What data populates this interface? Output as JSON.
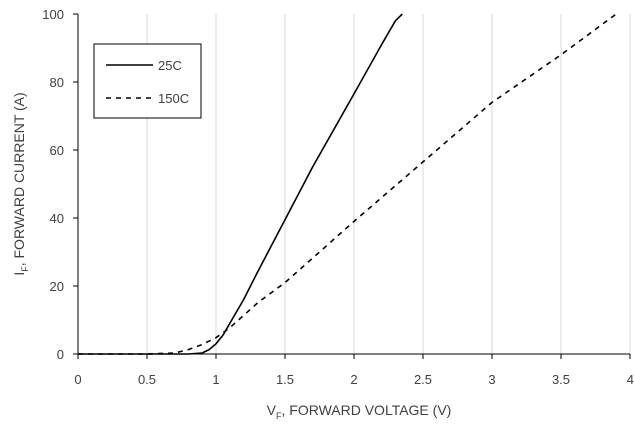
{
  "chart_data": {
    "type": "line",
    "xlabel": {
      "main": "V",
      "sub": "F",
      "rest": ", FORWARD VOLTAGE (V)"
    },
    "ylabel": {
      "main": "I",
      "sub": "F",
      "rest": ", FORWARD CURRENT (A)"
    },
    "xlim": [
      0,
      4
    ],
    "ylim": [
      0,
      100
    ],
    "xticks": [
      0,
      0.5,
      1,
      1.5,
      2,
      2.5,
      3,
      3.5,
      4
    ],
    "xtick_labels": [
      "0",
      "0.5",
      "1",
      "1.5",
      "2",
      "2.5",
      "3",
      "3.5",
      "4"
    ],
    "yticks": [
      0,
      20,
      40,
      60,
      80,
      100
    ],
    "ytick_labels": [
      "0",
      "20",
      "40",
      "60",
      "80",
      "100"
    ],
    "grid": "vertical",
    "legend_position": "top-left",
    "series": [
      {
        "name": "25C",
        "style": "solid",
        "color": "#000000",
        "x": [
          0,
          0.5,
          0.8,
          0.9,
          0.95,
          1.0,
          1.05,
          1.1,
          1.2,
          1.3,
          1.5,
          1.7,
          2.0,
          2.2,
          2.3,
          2.35
        ],
        "y": [
          0,
          0,
          0,
          0.3,
          1.3,
          3,
          5.5,
          9,
          16,
          24,
          39.5,
          55,
          76.5,
          91,
          98,
          100
        ]
      },
      {
        "name": "150C",
        "style": "dashed",
        "color": "#000000",
        "x": [
          0,
          0.5,
          0.7,
          0.8,
          0.9,
          1.0,
          1.1,
          1.3,
          1.5,
          2.0,
          2.5,
          3.0,
          3.5,
          3.9
        ],
        "y": [
          0,
          0,
          0.3,
          1.3,
          2.8,
          4.8,
          7.7,
          15,
          21,
          39,
          56.5,
          74,
          88,
          100
        ]
      }
    ]
  }
}
